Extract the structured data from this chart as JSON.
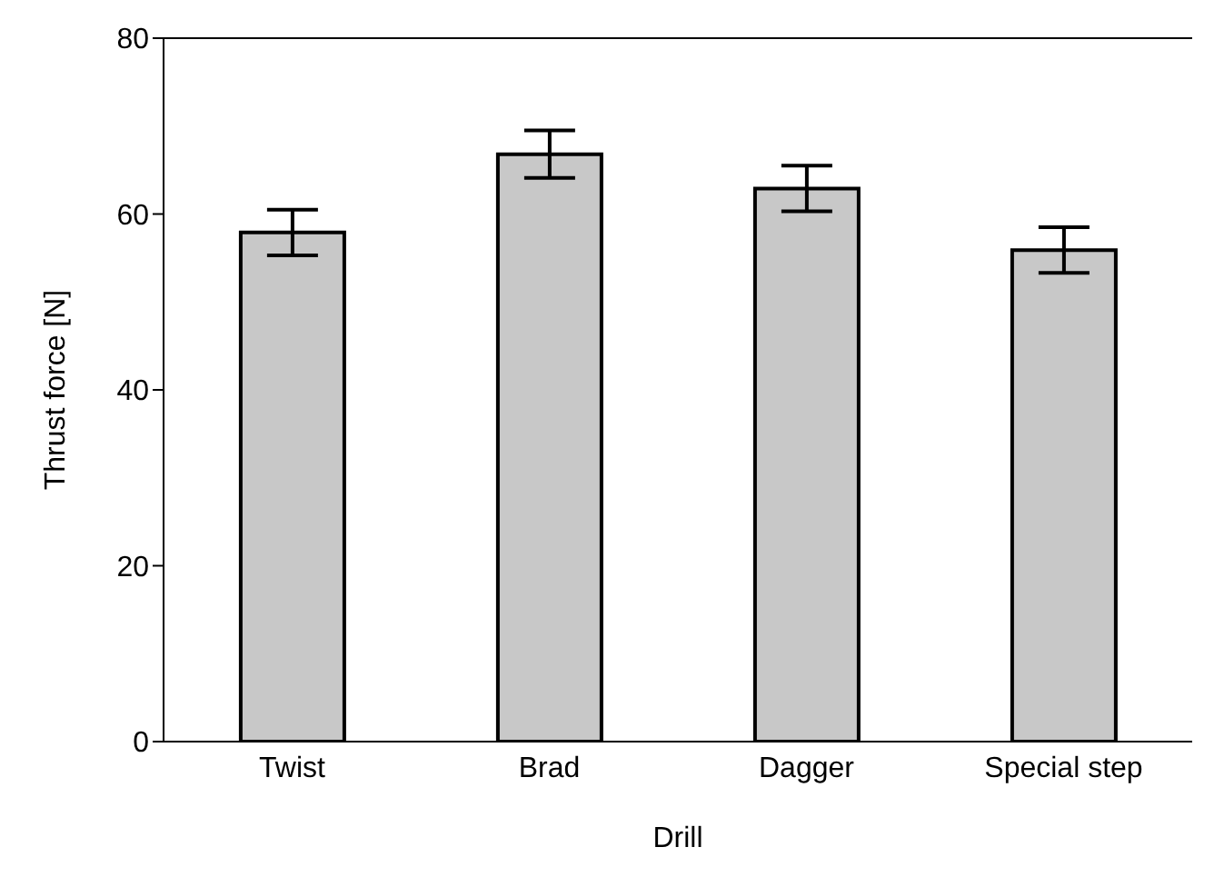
{
  "chart_data": {
    "type": "bar",
    "xlabel": "Drill",
    "ylabel": "Thrust force [N]",
    "categories": [
      "Twist",
      "Brad",
      "Dagger",
      "Special step"
    ],
    "values": [
      57.9,
      66.8,
      62.9,
      55.9
    ],
    "errors": [
      2.6,
      2.7,
      2.6,
      2.6
    ],
    "color": "#c8c8c8",
    "ylim": [
      0,
      80
    ],
    "yticks": [
      0,
      20,
      40,
      60,
      80
    ],
    "grid": false
  }
}
